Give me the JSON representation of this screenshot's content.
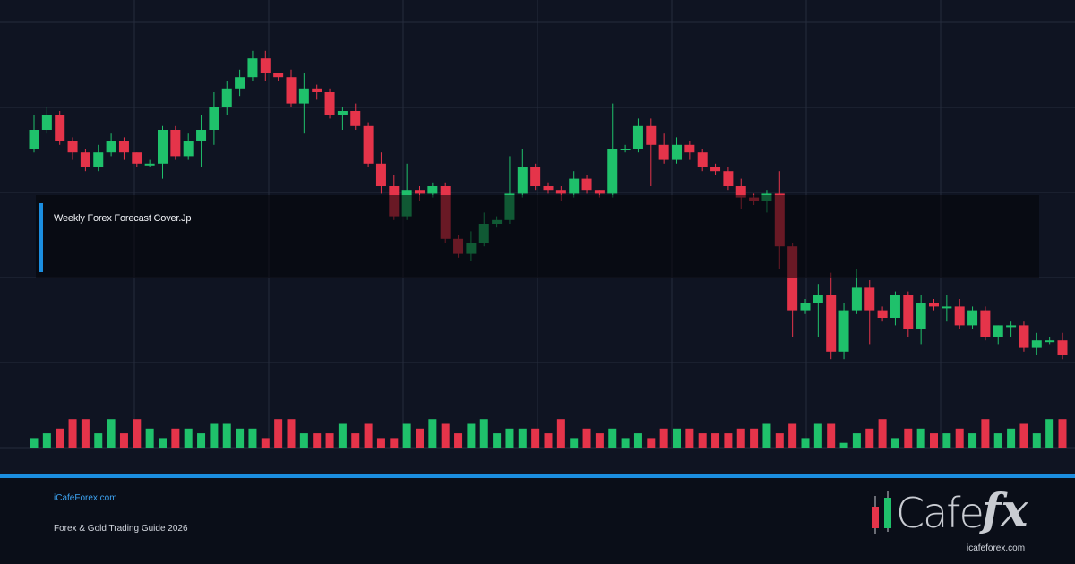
{
  "header": {
    "title": "Weekly Forex Forecast Cover.Jp"
  },
  "footer": {
    "site_link": "iCafeForex.com",
    "guide_label": "Forex & Gold Trading Guide 2026",
    "logo_word": "Cafe",
    "logo_fx": "fx",
    "logo_url": "icafeforex.com"
  },
  "colors": {
    "background": "#0f1422",
    "grid": "#262c3c",
    "up": "#1fc16b",
    "down": "#e5344a",
    "accent": "#1b8ee0"
  },
  "chart_data": {
    "type": "candlestick",
    "grid": true,
    "ylim": [
      0,
      100
    ],
    "volume_ylim": [
      0,
      10
    ],
    "candles": [
      [
        70,
        75,
        79,
        69
      ],
      [
        75,
        79,
        81,
        74
      ],
      [
        79,
        72,
        80,
        71
      ],
      [
        72,
        69,
        73,
        67
      ],
      [
        69,
        65,
        70,
        64
      ],
      [
        65,
        69,
        71,
        64
      ],
      [
        69,
        72,
        74,
        68
      ],
      [
        72,
        69,
        73,
        67
      ],
      [
        69,
        66,
        69,
        65
      ],
      [
        66,
        66,
        67,
        65
      ],
      [
        66,
        75,
        76,
        62
      ],
      [
        75,
        68,
        76,
        67
      ],
      [
        68,
        72,
        74,
        67
      ],
      [
        72,
        75,
        79,
        65
      ],
      [
        75,
        81,
        85,
        71
      ],
      [
        81,
        86,
        88,
        79
      ],
      [
        86,
        89,
        91,
        84
      ],
      [
        89,
        94,
        96,
        88
      ],
      [
        94,
        90,
        96,
        88
      ],
      [
        90,
        89,
        90,
        88
      ],
      [
        89,
        82,
        91,
        81
      ],
      [
        82,
        86,
        90,
        74
      ],
      [
        86,
        85,
        87,
        83
      ],
      [
        85,
        79,
        86,
        78
      ],
      [
        79,
        80,
        81,
        75
      ],
      [
        80,
        76,
        82,
        75
      ],
      [
        76,
        66,
        77,
        65
      ],
      [
        66,
        60,
        69,
        58
      ],
      [
        60,
        52,
        63,
        51
      ],
      [
        52,
        59,
        66,
        51
      ],
      [
        59,
        58,
        60,
        56
      ],
      [
        58,
        60,
        61,
        57
      ],
      [
        60,
        46,
        61,
        45
      ],
      [
        46,
        42,
        47,
        41
      ],
      [
        42,
        45,
        48,
        40
      ],
      [
        45,
        50,
        53,
        44
      ],
      [
        50,
        51,
        52,
        49
      ],
      [
        51,
        58,
        68,
        50
      ],
      [
        58,
        65,
        70,
        57
      ],
      [
        65,
        60,
        66,
        59
      ],
      [
        60,
        59,
        61,
        58
      ],
      [
        59,
        58,
        60,
        56
      ],
      [
        58,
        62,
        64,
        57
      ],
      [
        62,
        59,
        63,
        58
      ],
      [
        59,
        58,
        59,
        57
      ],
      [
        58,
        70,
        82,
        57
      ],
      [
        70,
        70,
        71,
        69
      ],
      [
        70,
        76,
        78,
        69
      ],
      [
        76,
        71,
        78,
        60
      ],
      [
        71,
        67,
        74,
        66
      ],
      [
        67,
        71,
        73,
        66
      ],
      [
        71,
        69,
        72,
        67
      ],
      [
        69,
        65,
        70,
        64
      ],
      [
        65,
        64,
        66,
        63
      ],
      [
        64,
        60,
        65,
        59
      ],
      [
        60,
        57,
        62,
        54
      ],
      [
        57,
        56,
        58,
        55
      ],
      [
        56,
        58,
        59,
        53
      ],
      [
        58,
        44,
        64,
        38
      ],
      [
        44,
        27,
        45,
        20
      ],
      [
        27,
        29,
        30,
        26
      ],
      [
        29,
        31,
        34,
        20
      ],
      [
        31,
        16,
        37,
        14
      ],
      [
        16,
        27,
        29,
        14
      ],
      [
        27,
        33,
        38,
        26
      ],
      [
        33,
        27,
        35,
        18
      ],
      [
        27,
        25,
        28,
        24
      ],
      [
        25,
        31,
        32,
        23
      ],
      [
        31,
        22,
        32,
        20
      ],
      [
        22,
        29,
        31,
        18
      ],
      [
        29,
        28,
        30,
        27
      ],
      [
        28,
        28,
        31,
        24
      ],
      [
        28,
        23,
        30,
        22
      ],
      [
        23,
        27,
        28,
        22
      ],
      [
        27,
        20,
        28,
        19
      ],
      [
        20,
        23,
        23,
        18
      ],
      [
        23,
        23,
        24,
        20
      ],
      [
        23,
        17,
        24,
        16
      ],
      [
        17,
        19,
        21,
        15
      ],
      [
        19,
        19,
        20,
        18
      ],
      [
        19,
        15,
        21,
        14
      ]
    ],
    "volume": [
      2,
      3,
      4,
      6,
      6,
      3,
      6,
      3,
      6,
      4,
      2,
      4,
      4,
      3,
      5,
      5,
      4,
      4,
      2,
      6,
      6,
      3,
      3,
      3,
      5,
      3,
      5,
      2,
      2,
      5,
      4,
      6,
      5,
      3,
      5,
      6,
      3,
      4,
      4,
      4,
      3,
      6,
      2,
      4,
      3,
      4,
      2,
      3,
      2,
      4,
      4,
      4,
      3,
      3,
      3,
      4,
      4,
      5,
      3,
      5,
      2,
      5,
      5,
      1,
      3,
      4,
      6,
      2,
      4,
      4,
      3,
      3,
      4,
      3,
      6,
      3,
      4,
      5,
      3,
      6,
      6
    ]
  }
}
